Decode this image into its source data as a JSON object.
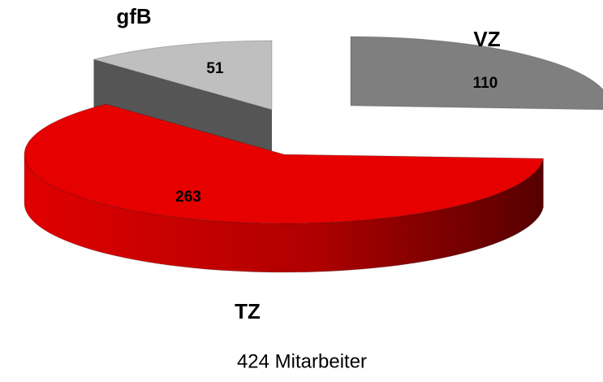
{
  "chart_data": {
    "type": "pie3d",
    "categories": [
      "VZ",
      "TZ",
      "gfB"
    ],
    "values": [
      110,
      263,
      51
    ],
    "colors": [
      "#7f7f7f",
      "#e60000",
      "#bfbfbf"
    ],
    "caption": "424 Mitarbeiter"
  }
}
